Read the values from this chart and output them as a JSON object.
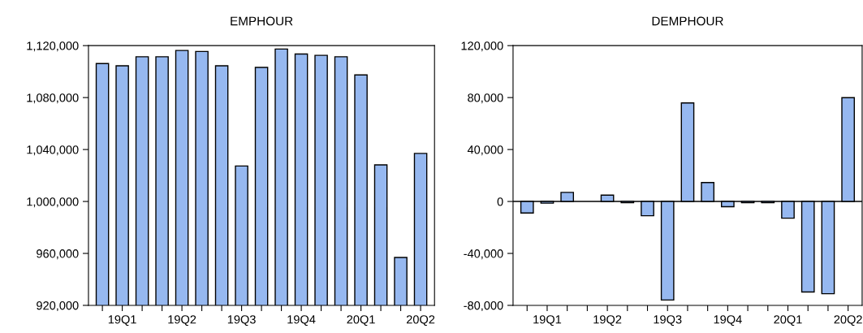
{
  "chart_data": [
    {
      "type": "bar",
      "title": "EMPHOUR",
      "categories": [
        null,
        "19Q1",
        null,
        null,
        "19Q2",
        null,
        null,
        "19Q3",
        null,
        null,
        "19Q4",
        null,
        null,
        "20Q1",
        null,
        null,
        "20Q2"
      ],
      "series": [
        {
          "color": "#96b8f0",
          "values": [
            1106200,
            1104500,
            1111400,
            1111400,
            1116300,
            1115500,
            1104500,
            1027300,
            1103200,
            1117400,
            1113500,
            1112500,
            1111400,
            1097400,
            1028200,
            956900,
            1037000
          ]
        }
      ],
      "ylim": [
        920000,
        1120000
      ],
      "yticks": [
        {
          "value": 920000,
          "label": "920,000"
        },
        {
          "value": 960000,
          "label": "960,000"
        },
        {
          "value": 1000000,
          "label": "1,000,000"
        },
        {
          "value": 1040000,
          "label": "1,040,000"
        },
        {
          "value": 1080000,
          "label": "1,080,000"
        },
        {
          "value": 1120000,
          "label": "1,120,000"
        }
      ],
      "grid": false
    },
    {
      "type": "bar",
      "title": "DEMPHOUR",
      "categories": [
        null,
        "19Q1",
        null,
        null,
        "19Q2",
        null,
        null,
        "19Q3",
        null,
        null,
        "19Q4",
        null,
        null,
        "20Q1",
        null,
        null,
        "20Q2"
      ],
      "series": [
        {
          "color": "#96b8f0",
          "values": [
            -8900,
            -1300,
            7000,
            null,
            4900,
            -1000,
            -11000,
            -75900,
            75900,
            14600,
            -4000,
            -1000,
            -1000,
            -12900,
            -69700,
            -71000,
            79900
          ]
        }
      ],
      "ylim": [
        -80000,
        120000
      ],
      "yticks": [
        {
          "value": -80000,
          "label": "-80,000"
        },
        {
          "value": -40000,
          "label": "-40,000"
        },
        {
          "value": 0,
          "label": "0"
        },
        {
          "value": 40000,
          "label": "40,000"
        },
        {
          "value": 80000,
          "label": "80,000"
        },
        {
          "value": 120000,
          "label": "120,000"
        }
      ],
      "ref_lines": [
        {
          "axis": "y",
          "value": 0,
          "color": "#000000"
        }
      ],
      "grid": false
    }
  ]
}
